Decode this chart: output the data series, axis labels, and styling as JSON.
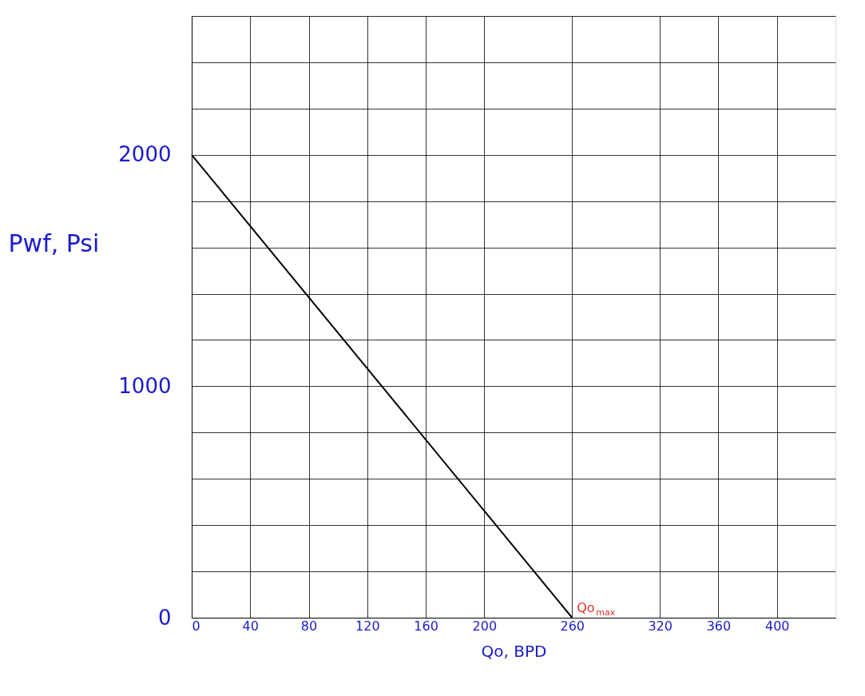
{
  "chart_data": {
    "type": "line",
    "xlabel": "Qo, BPD",
    "ylabel": "Pwf, Psi",
    "series": [
      {
        "color": "#000000",
        "x": [
          0,
          260
        ],
        "values": [
          2000,
          0
        ]
      }
    ],
    "xlim": [
      0,
      440
    ],
    "xticks": [
      0,
      40,
      80,
      120,
      160,
      200,
      260,
      320,
      360,
      400
    ],
    "ylim": [
      0,
      2600
    ],
    "yticks": [
      0,
      {
        "value": 200,
        "label": null
      },
      {
        "value": 400,
        "label": null
      },
      {
        "value": 600,
        "label": null
      },
      {
        "value": 800,
        "label": null
      },
      1000,
      {
        "value": 1200,
        "label": null
      },
      {
        "value": 1400,
        "label": null
      },
      {
        "value": 1600,
        "label": null
      },
      {
        "value": 1800,
        "label": null
      },
      2000,
      {
        "value": 2200,
        "label": null
      },
      {
        "value": 2400,
        "label": null
      },
      {
        "value": 2600,
        "label": null
      }
    ],
    "annotations": [
      {
        "text": "Qo$_{max}$",
        "x": 260,
        "y": 0
      }
    ],
    "grid": true,
    "marker": "none",
    "line_style": "solid"
  }
}
